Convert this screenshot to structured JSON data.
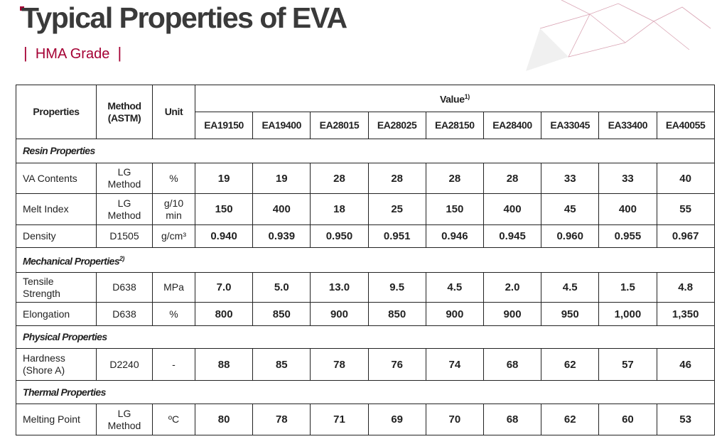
{
  "header": {
    "title": "Typical Properties of EVA",
    "subtitle": "HMA Grade"
  },
  "table": {
    "columns": {
      "property": "Properties",
      "method": "Method\n(ASTM)",
      "unit": "Unit",
      "value": "Value",
      "value_note": "1)"
    },
    "grades": [
      "EA19150",
      "EA19400",
      "EA28015",
      "EA28025",
      "EA28150",
      "EA28400",
      "EA33045",
      "EA33400",
      "EA40055"
    ],
    "sections": [
      {
        "title": "Resin Properties",
        "rows": [
          {
            "property": "VA Contents",
            "method": "LG\nMethod",
            "unit": "%",
            "values": [
              "19",
              "19",
              "28",
              "28",
              "28",
              "28",
              "33",
              "33",
              "40"
            ]
          },
          {
            "property": "Melt Index",
            "method": "LG\nMethod",
            "unit": "g/10\nmin",
            "values": [
              "150",
              "400",
              "18",
              "25",
              "150",
              "400",
              "45",
              "400",
              "55"
            ]
          },
          {
            "property": "Density",
            "method": "D1505",
            "unit": "g/cm³",
            "values": [
              "0.940",
              "0.939",
              "0.950",
              "0.951",
              "0.946",
              "0.945",
              "0.960",
              "0.955",
              "0.967"
            ]
          }
        ]
      },
      {
        "title": "Mechanical Properties",
        "note": "2)",
        "rows": [
          {
            "property": "Tensile\nStrength",
            "method": "D638",
            "unit": "MPa",
            "values": [
              "7.0",
              "5.0",
              "13.0",
              "9.5",
              "4.5",
              "2.0",
              "4.5",
              "1.5",
              "4.8"
            ]
          },
          {
            "property": "Elongation",
            "method": "D638",
            "unit": "%",
            "values": [
              "800",
              "850",
              "900",
              "850",
              "900",
              "900",
              "950",
              "1,000",
              "1,350"
            ]
          }
        ]
      },
      {
        "title": "Physical Properties",
        "rows": [
          {
            "property": "Hardness\n(Shore A)",
            "method": "D2240",
            "unit": "-",
            "values": [
              "88",
              "85",
              "78",
              "76",
              "74",
              "68",
              "62",
              "57",
              "46"
            ]
          }
        ]
      },
      {
        "title": "Thermal Properties",
        "rows": [
          {
            "property": "Melting Point",
            "method": "LG\nMethod",
            "unit": "ºC",
            "values": [
              "80",
              "78",
              "71",
              "69",
              "70",
              "68",
              "62",
              "60",
              "53"
            ]
          }
        ]
      }
    ]
  }
}
